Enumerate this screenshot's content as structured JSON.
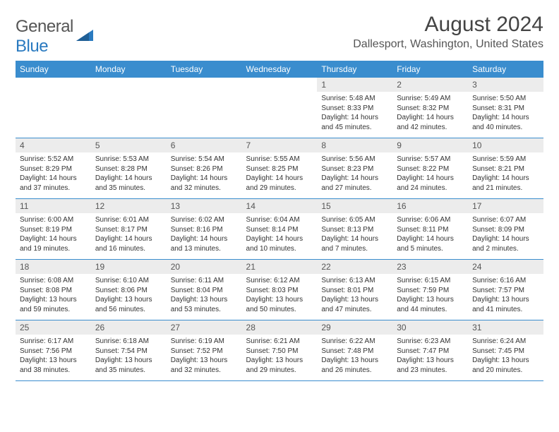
{
  "header": {
    "logo_word1": "General",
    "logo_word2": "Blue",
    "month_title": "August 2024",
    "location": "Dallesport, Washington, United States"
  },
  "style": {
    "header_bg": "#3a8dce",
    "header_text": "#ffffff",
    "daynum_bg": "#ececec",
    "body_text": "#333333",
    "row_border": "#3a8dce",
    "logo_blue": "#2a7ac0",
    "logo_gray": "#555555",
    "page_bg": "#ffffff"
  },
  "weekdays": [
    "Sunday",
    "Monday",
    "Tuesday",
    "Wednesday",
    "Thursday",
    "Friday",
    "Saturday"
  ],
  "weeks": [
    [
      {
        "date": "",
        "sunrise": "",
        "sunset": "",
        "daylight": ""
      },
      {
        "date": "",
        "sunrise": "",
        "sunset": "",
        "daylight": ""
      },
      {
        "date": "",
        "sunrise": "",
        "sunset": "",
        "daylight": ""
      },
      {
        "date": "",
        "sunrise": "",
        "sunset": "",
        "daylight": ""
      },
      {
        "date": "1",
        "sunrise": "Sunrise: 5:48 AM",
        "sunset": "Sunset: 8:33 PM",
        "daylight": "Daylight: 14 hours and 45 minutes."
      },
      {
        "date": "2",
        "sunrise": "Sunrise: 5:49 AM",
        "sunset": "Sunset: 8:32 PM",
        "daylight": "Daylight: 14 hours and 42 minutes."
      },
      {
        "date": "3",
        "sunrise": "Sunrise: 5:50 AM",
        "sunset": "Sunset: 8:31 PM",
        "daylight": "Daylight: 14 hours and 40 minutes."
      }
    ],
    [
      {
        "date": "4",
        "sunrise": "Sunrise: 5:52 AM",
        "sunset": "Sunset: 8:29 PM",
        "daylight": "Daylight: 14 hours and 37 minutes."
      },
      {
        "date": "5",
        "sunrise": "Sunrise: 5:53 AM",
        "sunset": "Sunset: 8:28 PM",
        "daylight": "Daylight: 14 hours and 35 minutes."
      },
      {
        "date": "6",
        "sunrise": "Sunrise: 5:54 AM",
        "sunset": "Sunset: 8:26 PM",
        "daylight": "Daylight: 14 hours and 32 minutes."
      },
      {
        "date": "7",
        "sunrise": "Sunrise: 5:55 AM",
        "sunset": "Sunset: 8:25 PM",
        "daylight": "Daylight: 14 hours and 29 minutes."
      },
      {
        "date": "8",
        "sunrise": "Sunrise: 5:56 AM",
        "sunset": "Sunset: 8:23 PM",
        "daylight": "Daylight: 14 hours and 27 minutes."
      },
      {
        "date": "9",
        "sunrise": "Sunrise: 5:57 AM",
        "sunset": "Sunset: 8:22 PM",
        "daylight": "Daylight: 14 hours and 24 minutes."
      },
      {
        "date": "10",
        "sunrise": "Sunrise: 5:59 AM",
        "sunset": "Sunset: 8:21 PM",
        "daylight": "Daylight: 14 hours and 21 minutes."
      }
    ],
    [
      {
        "date": "11",
        "sunrise": "Sunrise: 6:00 AM",
        "sunset": "Sunset: 8:19 PM",
        "daylight": "Daylight: 14 hours and 19 minutes."
      },
      {
        "date": "12",
        "sunrise": "Sunrise: 6:01 AM",
        "sunset": "Sunset: 8:17 PM",
        "daylight": "Daylight: 14 hours and 16 minutes."
      },
      {
        "date": "13",
        "sunrise": "Sunrise: 6:02 AM",
        "sunset": "Sunset: 8:16 PM",
        "daylight": "Daylight: 14 hours and 13 minutes."
      },
      {
        "date": "14",
        "sunrise": "Sunrise: 6:04 AM",
        "sunset": "Sunset: 8:14 PM",
        "daylight": "Daylight: 14 hours and 10 minutes."
      },
      {
        "date": "15",
        "sunrise": "Sunrise: 6:05 AM",
        "sunset": "Sunset: 8:13 PM",
        "daylight": "Daylight: 14 hours and 7 minutes."
      },
      {
        "date": "16",
        "sunrise": "Sunrise: 6:06 AM",
        "sunset": "Sunset: 8:11 PM",
        "daylight": "Daylight: 14 hours and 5 minutes."
      },
      {
        "date": "17",
        "sunrise": "Sunrise: 6:07 AM",
        "sunset": "Sunset: 8:09 PM",
        "daylight": "Daylight: 14 hours and 2 minutes."
      }
    ],
    [
      {
        "date": "18",
        "sunrise": "Sunrise: 6:08 AM",
        "sunset": "Sunset: 8:08 PM",
        "daylight": "Daylight: 13 hours and 59 minutes."
      },
      {
        "date": "19",
        "sunrise": "Sunrise: 6:10 AM",
        "sunset": "Sunset: 8:06 PM",
        "daylight": "Daylight: 13 hours and 56 minutes."
      },
      {
        "date": "20",
        "sunrise": "Sunrise: 6:11 AM",
        "sunset": "Sunset: 8:04 PM",
        "daylight": "Daylight: 13 hours and 53 minutes."
      },
      {
        "date": "21",
        "sunrise": "Sunrise: 6:12 AM",
        "sunset": "Sunset: 8:03 PM",
        "daylight": "Daylight: 13 hours and 50 minutes."
      },
      {
        "date": "22",
        "sunrise": "Sunrise: 6:13 AM",
        "sunset": "Sunset: 8:01 PM",
        "daylight": "Daylight: 13 hours and 47 minutes."
      },
      {
        "date": "23",
        "sunrise": "Sunrise: 6:15 AM",
        "sunset": "Sunset: 7:59 PM",
        "daylight": "Daylight: 13 hours and 44 minutes."
      },
      {
        "date": "24",
        "sunrise": "Sunrise: 6:16 AM",
        "sunset": "Sunset: 7:57 PM",
        "daylight": "Daylight: 13 hours and 41 minutes."
      }
    ],
    [
      {
        "date": "25",
        "sunrise": "Sunrise: 6:17 AM",
        "sunset": "Sunset: 7:56 PM",
        "daylight": "Daylight: 13 hours and 38 minutes."
      },
      {
        "date": "26",
        "sunrise": "Sunrise: 6:18 AM",
        "sunset": "Sunset: 7:54 PM",
        "daylight": "Daylight: 13 hours and 35 minutes."
      },
      {
        "date": "27",
        "sunrise": "Sunrise: 6:19 AM",
        "sunset": "Sunset: 7:52 PM",
        "daylight": "Daylight: 13 hours and 32 minutes."
      },
      {
        "date": "28",
        "sunrise": "Sunrise: 6:21 AM",
        "sunset": "Sunset: 7:50 PM",
        "daylight": "Daylight: 13 hours and 29 minutes."
      },
      {
        "date": "29",
        "sunrise": "Sunrise: 6:22 AM",
        "sunset": "Sunset: 7:48 PM",
        "daylight": "Daylight: 13 hours and 26 minutes."
      },
      {
        "date": "30",
        "sunrise": "Sunrise: 6:23 AM",
        "sunset": "Sunset: 7:47 PM",
        "daylight": "Daylight: 13 hours and 23 minutes."
      },
      {
        "date": "31",
        "sunrise": "Sunrise: 6:24 AM",
        "sunset": "Sunset: 7:45 PM",
        "daylight": "Daylight: 13 hours and 20 minutes."
      }
    ]
  ]
}
